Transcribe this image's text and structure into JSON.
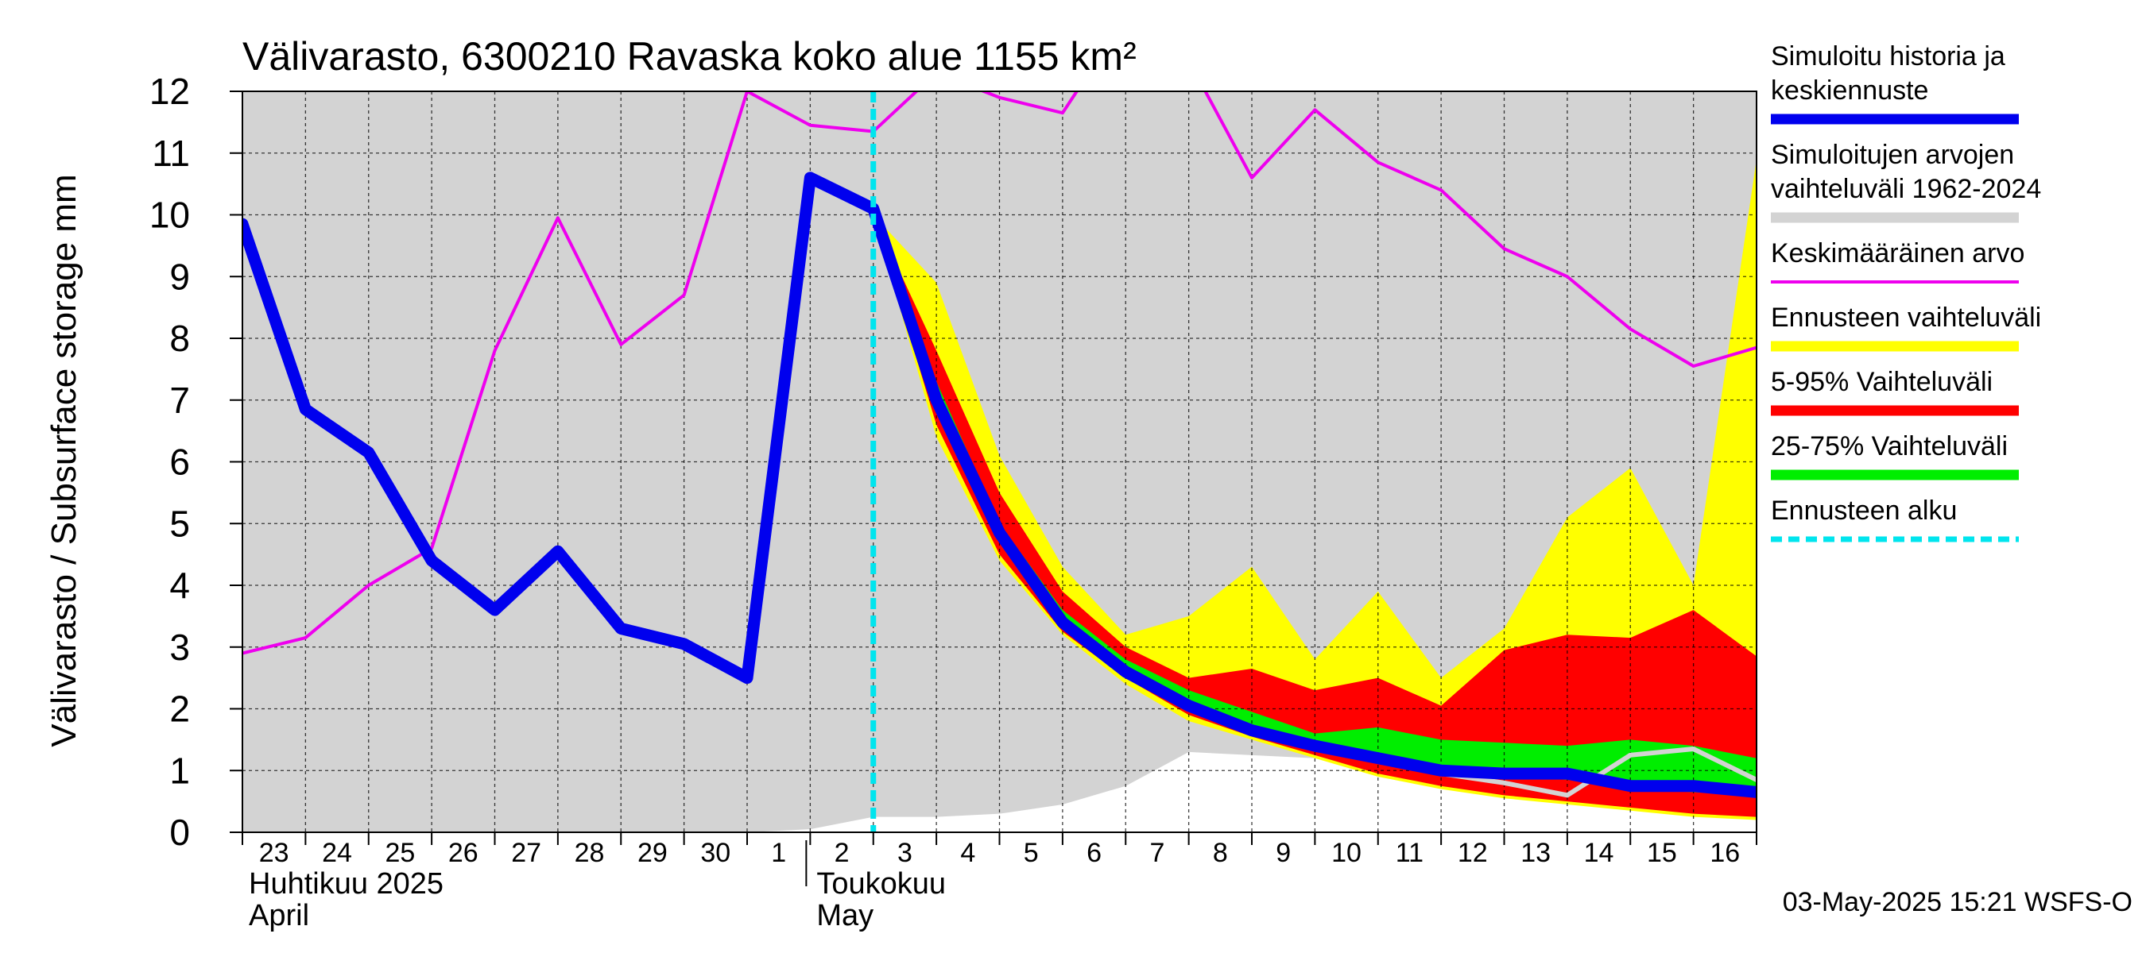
{
  "chart_data": {
    "type": "area",
    "title": "Välivarasto, 6300210 Ravaska koko alue 1155 km²",
    "ylabel": "Välivarasto / Subsurface storage  mm",
    "ylim": [
      0,
      12
    ],
    "yticks": [
      0,
      1,
      2,
      3,
      4,
      5,
      6,
      7,
      8,
      9,
      10,
      11,
      12
    ],
    "xlim": [
      0,
      24
    ],
    "day_labels": [
      "23",
      "24",
      "25",
      "26",
      "27",
      "28",
      "29",
      "30",
      "1",
      "2",
      "3",
      "4",
      "5",
      "6",
      "7",
      "8",
      "9",
      "10",
      "11",
      "12",
      "13",
      "14",
      "15",
      "16"
    ],
    "month_labels": [
      {
        "fi": "Huhtikuu  2025",
        "en": "April",
        "at_x": 0
      },
      {
        "fi": "Toukokuu",
        "en": "May",
        "at_x": 9
      }
    ],
    "grid": true,
    "forecast_start_x": 10,
    "timestamp": "03-May-2025 15:21 WSFS-O",
    "colors": {
      "history": "#0000ee",
      "range_hist": "#d3d3d3",
      "mean": "#ee00ee",
      "forecast_range": "#ffff00",
      "p5_95": "#ff0000",
      "p25_75": "#00ee00",
      "forecast_start": "#00e5ee",
      "unshaded": "#ffffff"
    },
    "hist_range_lower": {
      "x": [
        0,
        8,
        9,
        10,
        11,
        12,
        13,
        14,
        15,
        16,
        17,
        18,
        19,
        20,
        21,
        22,
        23,
        24
      ],
      "y": [
        0,
        0,
        0.05,
        0.25,
        0.25,
        0.3,
        0.45,
        0.75,
        1.3,
        1.25,
        1.2,
        1.1,
        0.95,
        0.85,
        0.75,
        0.65,
        0.6,
        0.55
      ]
    },
    "forecast_range": {
      "x": [
        10,
        11,
        12,
        13,
        14,
        15,
        16,
        17,
        18,
        19,
        20,
        21,
        22,
        23,
        24
      ],
      "upper": [
        10.0,
        8.9,
        6.1,
        4.3,
        3.2,
        3.5,
        4.3,
        2.8,
        3.9,
        2.5,
        3.3,
        5.1,
        5.9,
        4.0,
        10.9
      ],
      "lower": [
        10.0,
        6.4,
        4.4,
        3.2,
        2.4,
        1.8,
        1.5,
        1.2,
        0.9,
        0.7,
        0.55,
        0.45,
        0.35,
        0.25,
        0.2
      ]
    },
    "p5_95": {
      "x": [
        10,
        11,
        12,
        13,
        14,
        15,
        16,
        17,
        18,
        19,
        20,
        21,
        22,
        23,
        24
      ],
      "upper": [
        10.0,
        7.8,
        5.5,
        3.9,
        3.0,
        2.5,
        2.65,
        2.3,
        2.5,
        2.05,
        2.95,
        3.2,
        3.15,
        3.6,
        2.85
      ],
      "lower": [
        10.0,
        6.6,
        4.5,
        3.25,
        2.5,
        1.9,
        1.55,
        1.25,
        0.95,
        0.75,
        0.6,
        0.5,
        0.4,
        0.3,
        0.25
      ]
    },
    "p25_75": {
      "x": [
        10,
        11,
        12,
        13,
        14,
        15,
        16,
        17,
        18,
        19,
        20,
        21,
        22,
        23,
        24
      ],
      "upper": [
        10.0,
        7.3,
        5.0,
        3.6,
        2.8,
        2.3,
        1.95,
        1.6,
        1.7,
        1.5,
        1.45,
        1.4,
        1.5,
        1.4,
        1.2
      ],
      "lower": [
        10.0,
        6.9,
        4.7,
        3.35,
        2.55,
        2.05,
        1.7,
        1.4,
        1.2,
        1.0,
        0.9,
        0.85,
        0.7,
        0.65,
        0.6
      ]
    },
    "light_line": {
      "x": [
        18,
        19,
        20,
        21,
        22,
        23,
        24
      ],
      "y": [
        1.2,
        0.95,
        0.8,
        0.6,
        1.25,
        1.35,
        0.85
      ]
    },
    "mean_line": {
      "x": [
        0,
        1,
        2,
        3,
        4,
        5,
        6,
        7,
        8,
        9,
        10,
        11,
        12,
        13,
        14,
        15,
        16,
        17,
        18,
        19,
        20,
        21,
        22,
        23,
        24
      ],
      "y": [
        2.9,
        3.15,
        4.0,
        4.6,
        7.8,
        9.95,
        7.9,
        8.7,
        12.0,
        11.45,
        11.35,
        12.3,
        11.9,
        11.65,
        13.2,
        12.5,
        10.6,
        11.7,
        10.85,
        10.4,
        9.45,
        9.0,
        8.15,
        7.55,
        7.85
      ]
    },
    "series": [
      {
        "name": "Simuloitu historia ja keskiennuste",
        "x": [
          0,
          1,
          2,
          3,
          4,
          5,
          6,
          7,
          8,
          9,
          10,
          11,
          12,
          13,
          14,
          15,
          16,
          17,
          18,
          19,
          20,
          21,
          22,
          23,
          24
        ],
        "y": [
          9.85,
          6.85,
          6.15,
          4.4,
          3.6,
          4.55,
          3.3,
          3.05,
          2.5,
          10.6,
          10.1,
          7.0,
          4.85,
          3.4,
          2.6,
          2.05,
          1.65,
          1.4,
          1.2,
          1.0,
          0.95,
          0.95,
          0.75,
          0.75,
          0.65
        ]
      }
    ],
    "legend": [
      {
        "label": "Simuloitu historia ja keskiennuste",
        "color": "#0000ee",
        "style": "thick"
      },
      {
        "label": "Simuloitujen arvojen vaihteluväli 1962-2024",
        "color": "#d3d3d3",
        "style": "thick"
      },
      {
        "label": "Keskimääräinen arvo",
        "color": "#ee00ee",
        "style": "thin"
      },
      {
        "label": "Ennusteen vaihteluväli",
        "color": "#ffff00",
        "style": "thick"
      },
      {
        "label": "5-95% Vaihteluväli",
        "color": "#ff0000",
        "style": "thick"
      },
      {
        "label": "25-75% Vaihteluväli",
        "color": "#00ee00",
        "style": "thick"
      },
      {
        "label": "Ennusteen alku",
        "color": "#00e5ee",
        "style": "dashed"
      }
    ]
  }
}
